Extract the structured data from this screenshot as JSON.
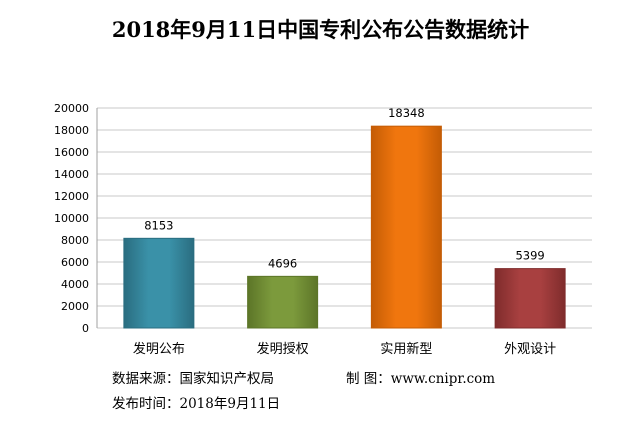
{
  "title": "2018年9月11日中国专利公布公告数据统计",
  "footer": {
    "source": "数据来源：国家知识产权局",
    "maker": "制  图：www.cnipr.com",
    "date": "发布时间：2018年9月11日"
  },
  "colors": {
    "bar_fills": [
      "#3a91a8",
      "#7c9a3c",
      "#f0760e",
      "#a84040"
    ],
    "bar_strokes": [
      "#2a6d80",
      "#5c7528",
      "#c45c05",
      "#7f2c2c"
    ],
    "grid": "#c8c8c8"
  },
  "chart_data": {
    "type": "bar",
    "categories": [
      "发明公布",
      "发明授权",
      "实用新型",
      "外观设计"
    ],
    "values": [
      8153,
      4696,
      18348,
      5399
    ],
    "title": "2018年9月11日中国专利公布公告数据统计",
    "xlabel": "",
    "ylabel": "",
    "ylim": [
      0,
      20000
    ],
    "yticks": [
      0,
      2000,
      4000,
      6000,
      8000,
      10000,
      12000,
      14000,
      16000,
      18000,
      20000
    ],
    "grid": true,
    "legend": "none",
    "data_labels": true
  }
}
